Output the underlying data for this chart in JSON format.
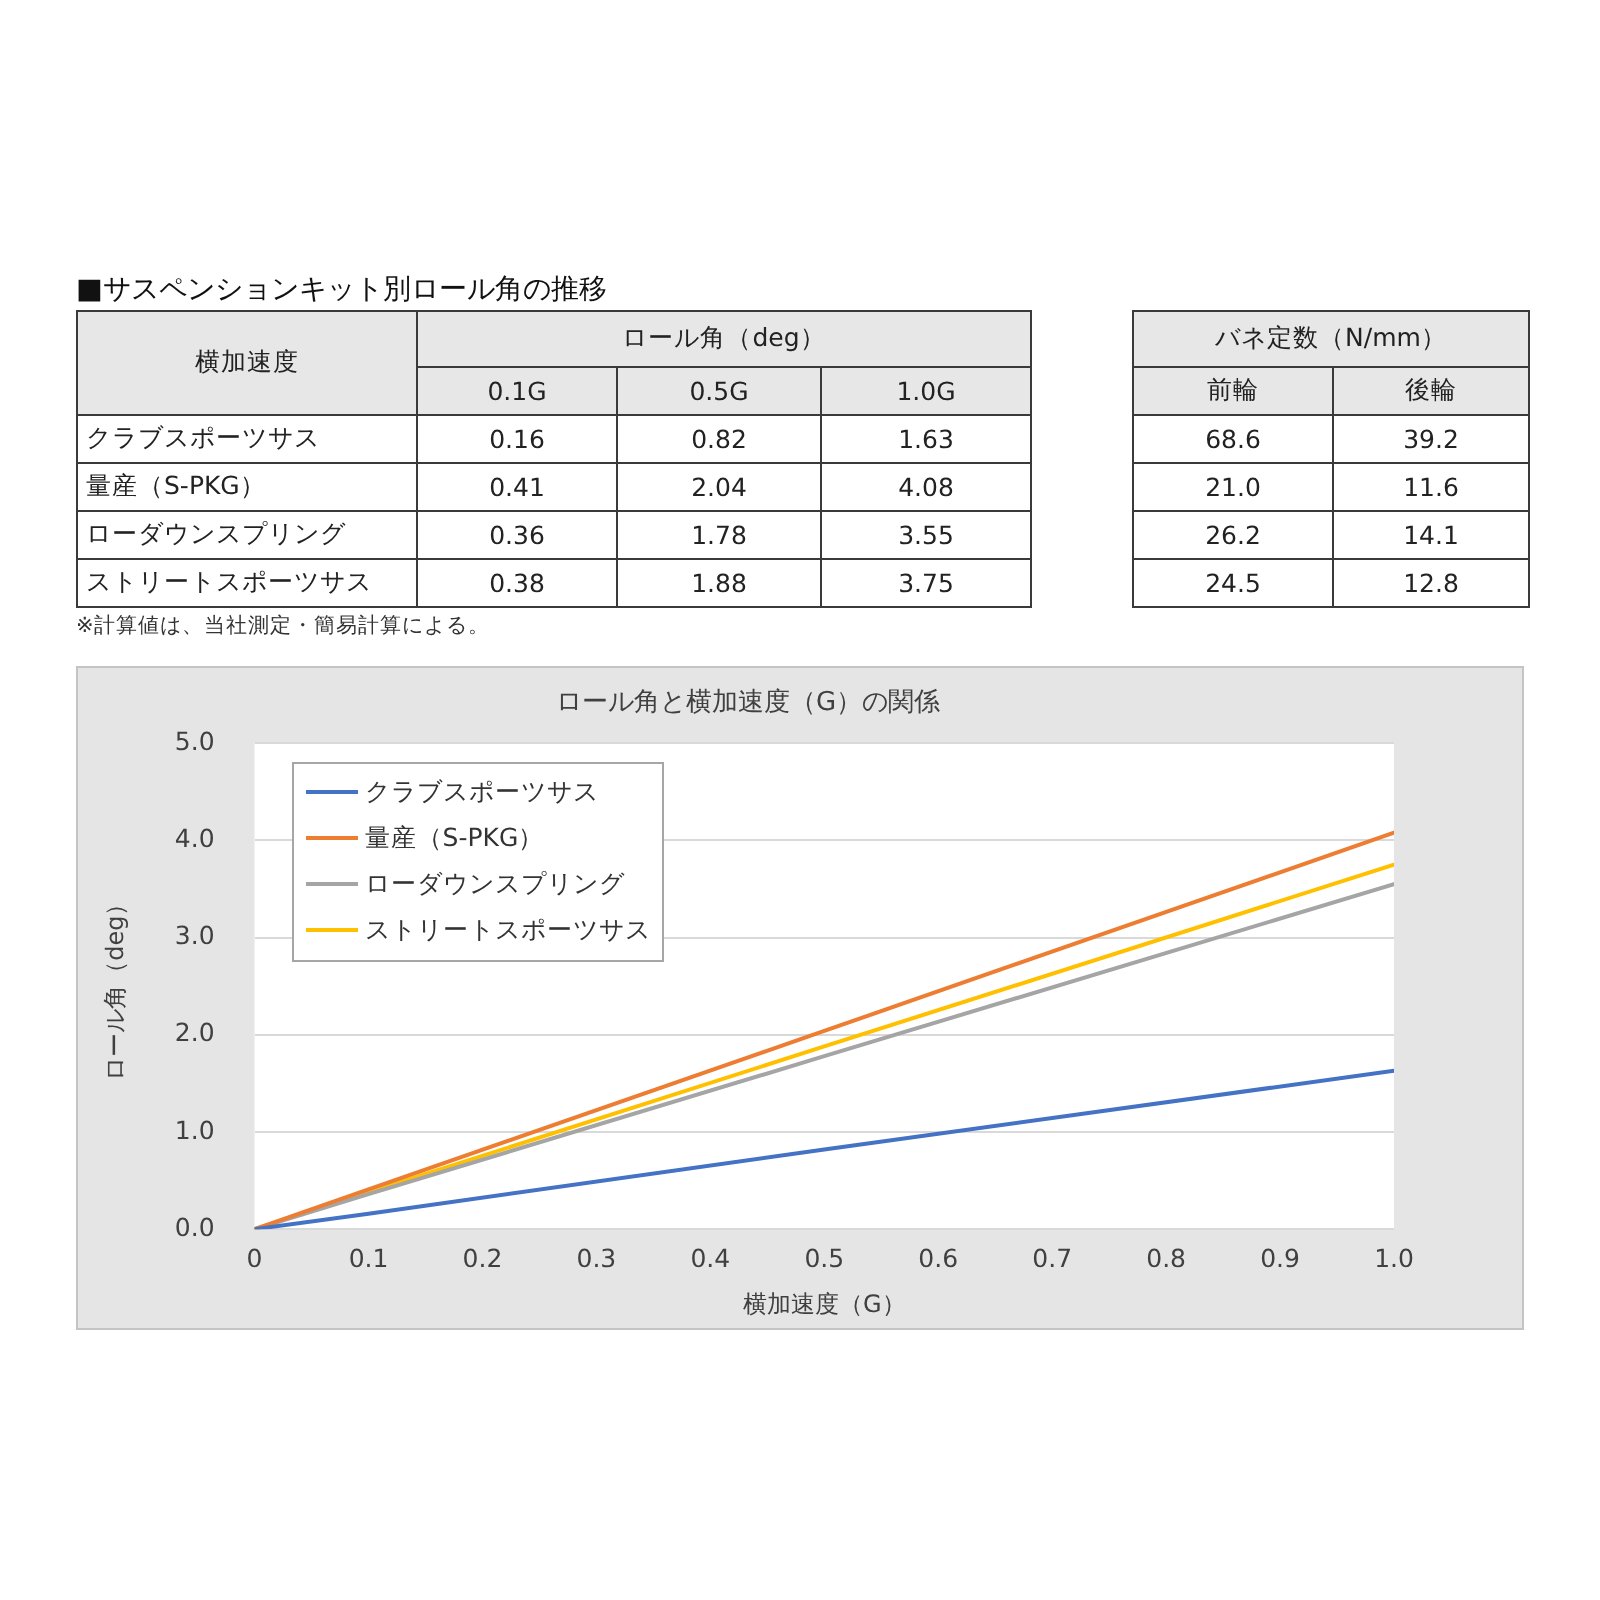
{
  "chart_data": [
    {
      "type": "other",
      "title": "■サスペンションキット別ロール角の推移",
      "xlabel": "横加速度",
      "ylabel": "ロール角（deg）",
      "y2label": "バネ定数（N/mm）",
      "categories": [
        "クラブスポーツサス",
        "量産（S-PKG）",
        "ローダウンスプリング",
        "ストリートスポーツサス"
      ],
      "series": [
        {
          "name": "0.1G",
          "values": [
            0.16,
            0.41,
            0.36,
            0.38
          ]
        },
        {
          "name": "0.5G",
          "values": [
            0.82,
            2.04,
            1.78,
            1.88
          ]
        },
        {
          "name": "1.0G",
          "values": [
            1.63,
            4.08,
            3.55,
            3.75
          ]
        },
        {
          "name": "前輪",
          "axis": "y2",
          "values": [
            68.6,
            21.0,
            26.2,
            24.5
          ],
          "value_labels": [
            "68.6",
            "21.0",
            "26.2",
            "24.5"
          ]
        },
        {
          "name": "後輪",
          "axis": "y2",
          "values": [
            39.2,
            11.6,
            14.1,
            12.8
          ],
          "value_labels": [
            "39.2",
            "11.6",
            "14.1",
            "12.8"
          ]
        }
      ],
      "data_labels": true,
      "annotations": [
        "※計算値は、当社測定・簡易計算による。"
      ]
    },
    {
      "type": "line",
      "title": "ロール角と横加速度（G）の関係",
      "xlabel": "横加速度（G）",
      "ylabel": "ロール角（deg）",
      "x": [
        0,
        0.1,
        0.5,
        1.0
      ],
      "series": [
        {
          "name": "クラブスポーツサス",
          "color": "#4472c4",
          "values": [
            0,
            0.16,
            0.82,
            1.63
          ]
        },
        {
          "name": "量産（S-PKG）",
          "color": "#ed7d31",
          "values": [
            0,
            0.41,
            2.04,
            4.08
          ]
        },
        {
          "name": "ローダウンスプリング",
          "color": "#a5a5a5",
          "values": [
            0,
            0.36,
            1.78,
            3.55
          ]
        },
        {
          "name": "ストリートスポーツサス",
          "color": "#ffc000",
          "values": [
            0,
            0.38,
            1.88,
            3.75
          ]
        }
      ],
      "xlim": [
        0,
        1
      ],
      "xticks": [
        0,
        0.1,
        0.2,
        0.3,
        0.4,
        0.5,
        0.6,
        0.7,
        0.8,
        0.9,
        {
          "value": 1,
          "label": "1.0"
        }
      ],
      "ylim": [
        0,
        5
      ],
      "yticks": [
        {
          "value": 0,
          "label": "0.0"
        },
        {
          "value": 1,
          "label": "1.0"
        },
        {
          "value": 2,
          "label": "2.0"
        },
        {
          "value": 3,
          "label": "3.0"
        },
        {
          "value": 4,
          "label": "4.0"
        },
        {
          "value": 5,
          "label": "5.0"
        }
      ],
      "grid": "y",
      "legend": "top left",
      "marker": "none",
      "line_style": "solid"
    }
  ]
}
